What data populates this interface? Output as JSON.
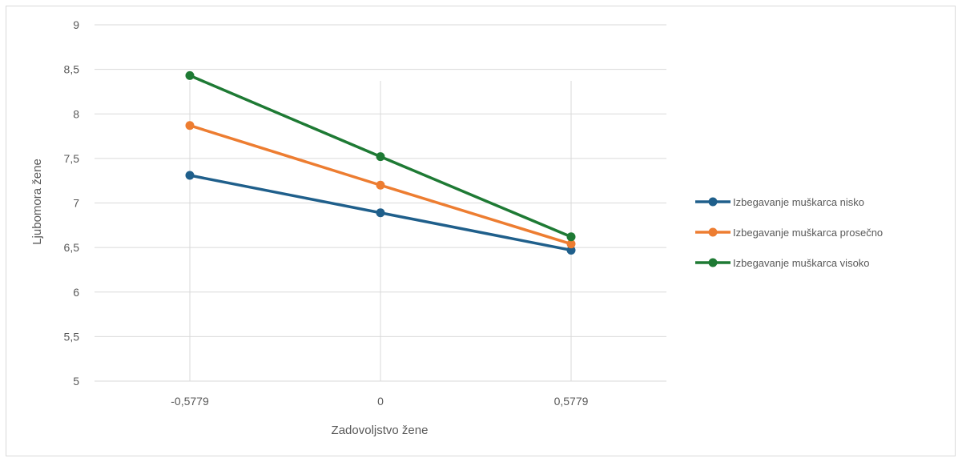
{
  "chart_data": {
    "type": "line",
    "title": "",
    "xlabel": "Zadovoljstvo žene",
    "ylabel": "Ljubomora žene",
    "categories": [
      "-0,5779",
      "0",
      "0,5779"
    ],
    "ylim": [
      5,
      9
    ],
    "yticks": [
      "5",
      "5,5",
      "6",
      "6,5",
      "7",
      "7,5",
      "8",
      "8,5",
      "9"
    ],
    "grid": "horizontal and vertical",
    "legend_position": "right",
    "series": [
      {
        "name": "Izbegavanje muškarca nisko",
        "color": "#1f5f8b",
        "values": [
          7.31,
          6.89,
          6.47
        ]
      },
      {
        "name": "Izbegavanje muškarca prosečno",
        "color": "#ed7d31",
        "values": [
          7.87,
          7.2,
          6.54
        ]
      },
      {
        "name": "Izbegavanje muškarca visoko",
        "color": "#1e7a34",
        "values": [
          8.43,
          7.52,
          6.62
        ]
      }
    ]
  }
}
